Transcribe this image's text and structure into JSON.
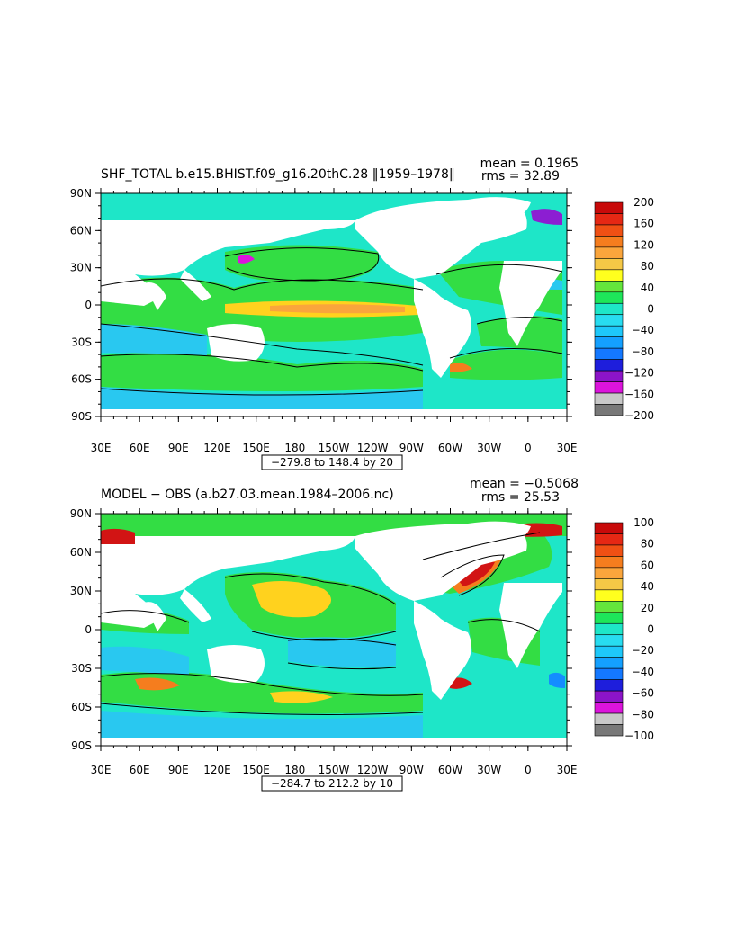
{
  "panels": [
    {
      "title": "SHF_TOTAL b.e15.BHIST.f09_g16.20thC.28 ‖1959–1978‖",
      "mean": "mean = 0.1965",
      "rms": "rms = 32.89",
      "range": "−279.8 to 148.4 by 20",
      "colorbar": [
        "200",
        "160",
        "120",
        "80",
        "40",
        "0",
        "−40",
        "−80",
        "−120",
        "−160",
        "−200"
      ]
    },
    {
      "title": "MODEL − OBS (a.b27.03.mean.1984–2006.nc)",
      "mean": "mean = −0.5068",
      "rms": "rms = 25.53",
      "range": "−284.7 to 212.2 by 10",
      "colorbar": [
        "100",
        "80",
        "60",
        "40",
        "20",
        "0",
        "−20",
        "−40",
        "−60",
        "−80",
        "−100"
      ]
    }
  ],
  "lat_labels": [
    "90N",
    "60N",
    "30N",
    "0",
    "30S",
    "60S",
    "90S"
  ],
  "lon_labels": [
    "30E",
    "60E",
    "90E",
    "120E",
    "150E",
    "180",
    "150W",
    "120W",
    "90W",
    "60W",
    "30W",
    "0",
    "30E"
  ],
  "colors": {
    "land": "#ffffff",
    "ocean_base": "#1ee6c8",
    "band_pos": "#33dd44",
    "band_warm": "#ffd21e",
    "band_hot": "#ff7b1e",
    "band_red": "#d21414",
    "band_neg": "#29c8f0",
    "band_neg2": "#148cff",
    "band_purple": "#8c1ed2",
    "band_magenta": "#dc14dc",
    "gray_light": "#c8c8c8",
    "gray_dark": "#787878",
    "contour": "#000000"
  },
  "colorbar_colors": [
    "#c80a0a",
    "#e62814",
    "#f05014",
    "#f57d1e",
    "#faa53c",
    "#f5c846",
    "#ffff1e",
    "#64e63c",
    "#1ee65a",
    "#1ee6c8",
    "#28dcf0",
    "#1ec8fa",
    "#14a0ff",
    "#1478ff",
    "#1e1edc",
    "#8c14c8",
    "#dc14dc",
    "#c8c8c8",
    "#787878"
  ]
}
